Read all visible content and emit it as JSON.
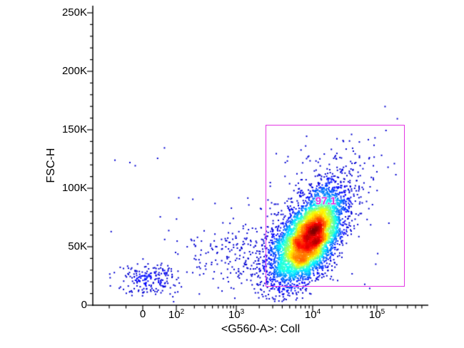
{
  "chart_data": {
    "type": "scatter",
    "subtype": "flow-cytometry-pseudocolor-density",
    "title": "",
    "xlabel": "<G560-A>: Coll",
    "ylabel": "FSC-H",
    "x_scale": "biexponential",
    "y_scale": "linear",
    "ylim": [
      0,
      256000
    ],
    "axis_color": "#000000",
    "colormap": "jet",
    "grid": false,
    "legend": false,
    "x_ticks": [
      {
        "value": 0,
        "label": "0"
      },
      {
        "value": 100,
        "label": "10^2"
      },
      {
        "value": 1000,
        "label": "10^3"
      },
      {
        "value": 10000,
        "label": "10^4"
      },
      {
        "value": 100000,
        "label": "10^5"
      }
    ],
    "y_ticks": [
      {
        "value": 0,
        "label": "0"
      },
      {
        "value": 50000,
        "label": "50K"
      },
      {
        "value": 100000,
        "label": "100K"
      },
      {
        "value": 150000,
        "label": "150K"
      },
      {
        "value": 200000,
        "label": "200K"
      },
      {
        "value": 250000,
        "label": "250K"
      }
    ],
    "y_minor_step": 10000,
    "x_minor_linear": [
      -100,
      -50,
      50
    ],
    "x_minor_log_decades": [
      100,
      1000,
      10000,
      100000
    ],
    "gate": {
      "label": "97.1",
      "color": "#e435e4",
      "x_min": 2400,
      "x_max": 260000,
      "y_min": 17000,
      "y_max": 154000,
      "label_x": 16000,
      "label_y": 89000
    },
    "populations": [
      {
        "name": "main-cluster",
        "model": "lognormal_x",
        "center_x": 9000,
        "center_y": 56000,
        "sigma_logx": 0.24,
        "sigma_y": 19000,
        "corr": 0.55,
        "count": 5200
      },
      {
        "name": "upper-halo",
        "model": "lognormal_x",
        "center_x": 13000,
        "center_y": 80000,
        "sigma_logx": 0.4,
        "sigma_y": 27000,
        "corr": 0.55,
        "count": 600
      },
      {
        "name": "left-smear",
        "model": "lognormal_x",
        "center_x": 1500,
        "center_y": 47000,
        "sigma_logx": 0.55,
        "sigma_y": 14000,
        "corr": 0.25,
        "count": 240
      },
      {
        "name": "debris-cluster",
        "model": "gaussian",
        "center_x": 15,
        "center_y": 22000,
        "sigma_x": 45,
        "sigma_y": 6500,
        "corr": 0,
        "count": 200
      },
      {
        "name": "background-events",
        "model": "uniform",
        "x_min": -100,
        "x_max": 250000,
        "y_min": 6000,
        "y_max": 140000,
        "count": 60
      }
    ]
  }
}
